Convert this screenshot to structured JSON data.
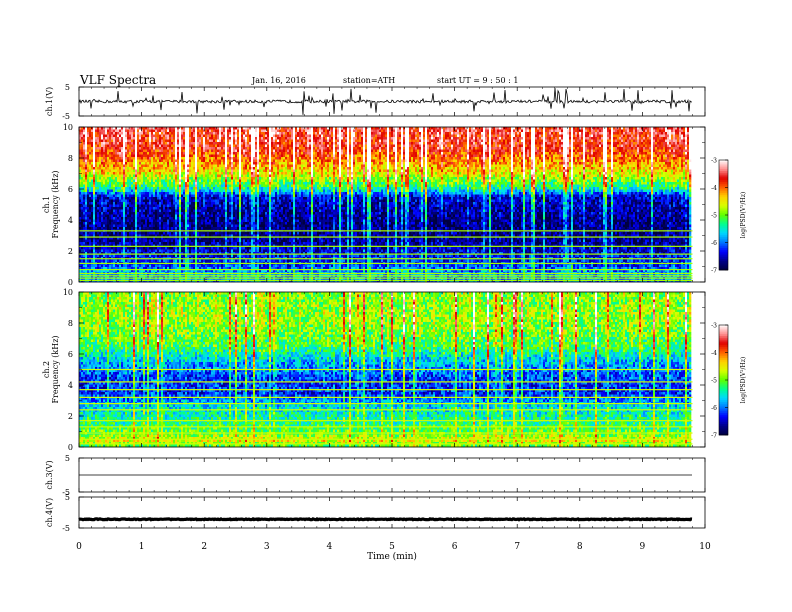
{
  "header": {
    "title": "VLF  Spectra",
    "date": "Jan. 16, 2016",
    "station": "station=ATH",
    "start": "start  UT =   9  : 50 : 1"
  },
  "chart_data": {
    "type": "heatmap",
    "title": "VLF  Spectra",
    "xlabel": "Time  (min)",
    "xlim": [
      0,
      10
    ],
    "x_ticks": [
      "0",
      "1",
      "2",
      "3",
      "4",
      "5",
      "6",
      "7",
      "8",
      "9",
      "10"
    ],
    "data_extent_min": 9.8,
    "colormap": [
      "#000040",
      "#00008b",
      "#0000ff",
      "#0078ff",
      "#00d8ff",
      "#00ff90",
      "#60ff00",
      "#d8ff00",
      "#ffd000",
      "#ff6000",
      "#e00000",
      "#ff9090",
      "#ffffff"
    ],
    "panels": [
      {
        "id": "ch1",
        "kind": "waveform",
        "ylabel": "ch.1(V)",
        "ylim": [
          -5,
          5
        ],
        "y_ticks": [
          "5",
          "-5"
        ],
        "baseline": 0,
        "noise_amplitude": 1,
        "spike_max": 4.5,
        "color": "#000000"
      },
      {
        "id": "ch1-spec",
        "kind": "spectrogram",
        "ylabel": [
          "ch.1",
          "Frequency  (kHz)"
        ],
        "ylim": [
          0,
          10
        ],
        "y_ticks": [
          "0",
          "2",
          "4",
          "6",
          "8",
          "10"
        ],
        "colorbar": {
          "label": "log(PSD(V²/Hz)",
          "range": [
            -7,
            -3
          ],
          "ticks": [
            "-3",
            "-4",
            "-5",
            "-6",
            "-7"
          ]
        },
        "profile": {
          "freq_khz": [
            0,
            0.5,
            1.0,
            2.0,
            2.5,
            3.5,
            4.5,
            5.5,
            6.0,
            7.0,
            8.5,
            10.0
          ],
          "log_psd": [
            -6.0,
            -5.8,
            -6.2,
            -6.5,
            -6.7,
            -6.8,
            -6.7,
            -6.5,
            -5.5,
            -4.6,
            -3.8,
            -3.6
          ]
        },
        "lines_khz": [
          0.1,
          0.25,
          0.4,
          0.55,
          0.8,
          1.2,
          1.5,
          1.8,
          2.3,
          2.9,
          3.3
        ],
        "line_level": -4.8
      },
      {
        "id": "ch2-spec",
        "kind": "spectrogram",
        "ylabel": [
          "ch.2",
          "Frequency  (kHz)"
        ],
        "ylim": [
          0,
          10
        ],
        "y_ticks": [
          "0",
          "2",
          "4",
          "6",
          "8",
          "10"
        ],
        "colorbar": {
          "label": "log(PSD(V²/Hz)",
          "range": [
            -7,
            -3
          ],
          "ticks": [
            "-3",
            "-4",
            "-5",
            "-6",
            "-7"
          ]
        },
        "profile": {
          "freq_khz": [
            0,
            0.4,
            0.8,
            1.5,
            2.5,
            3.5,
            4.5,
            5.5,
            6.5,
            7.5,
            8.5,
            10.0
          ],
          "log_psd": [
            -5.2,
            -4.6,
            -5.0,
            -5.3,
            -5.6,
            -6.3,
            -6.2,
            -5.8,
            -5.2,
            -5.0,
            -4.9,
            -5.0
          ]
        },
        "lines_khz": [
          0.2,
          0.5,
          0.9,
          1.3,
          1.7,
          2.4,
          2.8,
          3.2,
          3.7,
          4.2,
          5.0
        ],
        "line_level": -4.7
      },
      {
        "id": "ch3",
        "kind": "waveform",
        "ylabel": "ch.3(V)",
        "ylim": [
          -5,
          5
        ],
        "y_ticks": [
          "5",
          "-5"
        ],
        "baseline": 0,
        "noise_amplitude": 0,
        "spike_max": 0,
        "color": "#000000"
      },
      {
        "id": "ch4",
        "kind": "waveform",
        "ylabel": "ch.4(V)",
        "ylim": [
          -5,
          5
        ],
        "y_ticks": [
          "5",
          "-5"
        ],
        "baseline": -2.2,
        "noise_amplitude": 0.25,
        "spike_max": 0,
        "color": "#000000"
      }
    ]
  }
}
